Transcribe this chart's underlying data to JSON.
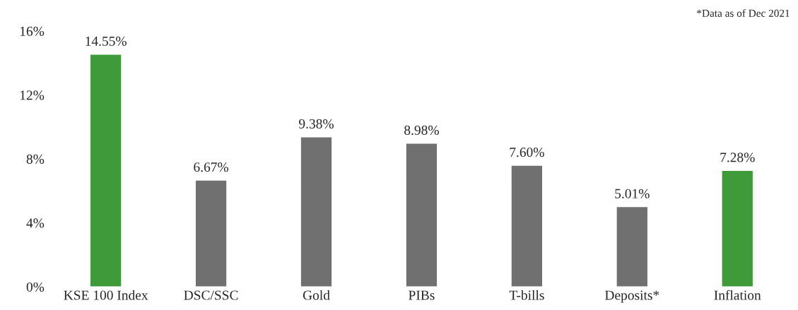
{
  "chart_data": {
    "type": "bar",
    "categories": [
      "KSE 100 Index",
      "DSC/SSC",
      "Gold",
      "PIBs",
      "T-bills",
      "Deposits*",
      "Inflation"
    ],
    "values": [
      14.55,
      6.67,
      9.38,
      8.98,
      7.6,
      5.01,
      7.28
    ],
    "colors": [
      "#3f9a3a",
      "#707070",
      "#707070",
      "#707070",
      "#707070",
      "#707070",
      "#3f9a3a"
    ],
    "value_labels": [
      "14.55%",
      "6.67%",
      "9.38%",
      "8.98%",
      "7.60%",
      "5.01%",
      "7.28%"
    ],
    "ylim": [
      0,
      16
    ],
    "yticks": [
      {
        "value": 0,
        "label": "0%"
      },
      {
        "value": 4,
        "label": "4%"
      },
      {
        "value": 8,
        "label": "8%"
      },
      {
        "value": 12,
        "label": "12%"
      },
      {
        "value": 16,
        "label": "16%"
      }
    ],
    "annotations": [
      "*Data as of Dec 2021"
    ],
    "grid": false,
    "legend": false
  }
}
